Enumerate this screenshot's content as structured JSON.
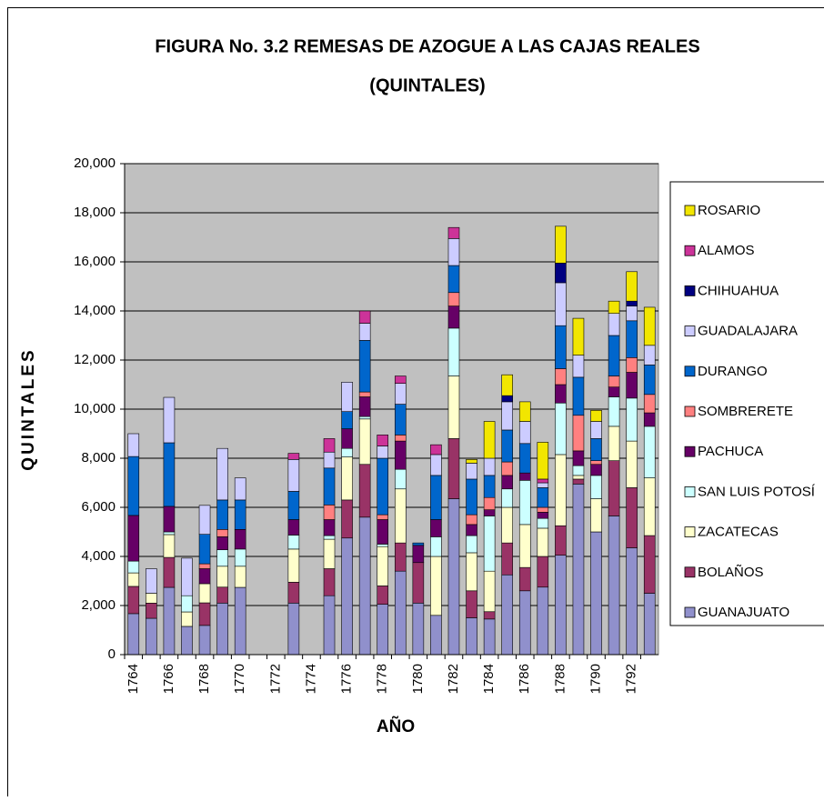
{
  "chart_data": {
    "type": "stacked-bar",
    "title": "FIGURA No. 3.2 REMESAS DE AZOGUE A LAS CAJAS REALES",
    "subtitle": "(QUINTALES)",
    "x_label": "AÑO",
    "y_label": "QUINTALES",
    "categories": [
      "1764",
      null,
      "1766",
      null,
      "1768",
      null,
      "1770",
      null,
      "1772",
      null,
      "1774",
      null,
      "1776",
      null,
      "1778",
      null,
      "1780",
      null,
      "1782",
      null,
      "1784",
      null,
      "1786",
      null,
      "1788",
      null,
      "1790",
      null,
      "1792",
      null
    ],
    "series": [
      {
        "name": "GUANAJUATO",
        "color": "#9090cc",
        "values": [
          1670,
          1480,
          2740,
          1150,
          1190,
          2100,
          2740,
          0,
          0,
          2100,
          0,
          2400,
          4750,
          5600,
          2050,
          3400,
          2100,
          1600,
          6350,
          1500,
          1450,
          3250,
          2600,
          2750,
          4050,
          6950,
          5000,
          5650,
          4350,
          2500
        ]
      },
      {
        "name": "BOLAÑOS",
        "color": "#993366",
        "values": [
          1110,
          620,
          1220,
          0,
          920,
          650,
          0,
          0,
          0,
          850,
          0,
          1100,
          1550,
          2150,
          750,
          1150,
          1650,
          0,
          2450,
          1100,
          300,
          1300,
          950,
          1250,
          1200,
          200,
          0,
          2250,
          2450,
          2350
        ]
      },
      {
        "name": "ZACATECAS",
        "color": "#ffffcc",
        "values": [
          550,
          400,
          930,
          590,
          780,
          850,
          860,
          0,
          0,
          1350,
          0,
          1200,
          1750,
          1850,
          1600,
          2200,
          0,
          2400,
          2550,
          1550,
          1650,
          1450,
          1750,
          1150,
          2900,
          150,
          1350,
          1400,
          1900,
          2350
        ]
      },
      {
        "name": "SAN LUIS POTOSÍ",
        "color": "#ccffff",
        "values": [
          480,
          0,
          110,
          660,
          0,
          670,
          700,
          0,
          0,
          570,
          0,
          150,
          350,
          100,
          100,
          800,
          0,
          800,
          1950,
          700,
          2250,
          750,
          1800,
          400,
          2100,
          400,
          950,
          1200,
          1750,
          2100
        ]
      },
      {
        "name": "PACHUCA",
        "color": "#660066",
        "values": [
          1860,
          0,
          1040,
          0,
          610,
          530,
          800,
          0,
          0,
          630,
          0,
          650,
          800,
          800,
          1000,
          1150,
          700,
          700,
          900,
          450,
          250,
          550,
          300,
          250,
          750,
          600,
          450,
          400,
          1050,
          550
        ]
      },
      {
        "name": "SOMBRERETE",
        "color": "#ff8080",
        "values": [
          0,
          0,
          0,
          0,
          200,
          300,
          0,
          0,
          0,
          0,
          0,
          600,
          0,
          200,
          200,
          250,
          0,
          0,
          550,
          400,
          500,
          550,
          0,
          200,
          650,
          1450,
          150,
          450,
          600,
          750
        ]
      },
      {
        "name": "DURANGO",
        "color": "#0066cc",
        "values": [
          2400,
          0,
          2590,
          0,
          1200,
          1200,
          1200,
          0,
          0,
          1150,
          0,
          1500,
          700,
          2100,
          2300,
          1250,
          100,
          1800,
          1100,
          1450,
          900,
          1300,
          1200,
          800,
          1750,
          1550,
          900,
          1650,
          1500,
          1200
        ]
      },
      {
        "name": "GUADALAJARA",
        "color": "#ccccff",
        "values": [
          930,
          1000,
          1850,
          1530,
          1180,
          2100,
          900,
          0,
          0,
          1300,
          0,
          650,
          1200,
          700,
          500,
          850,
          0,
          850,
          1100,
          650,
          700,
          1150,
          900,
          200,
          1750,
          900,
          700,
          900,
          600,
          800
        ]
      },
      {
        "name": "CHIHUAHUA",
        "color": "#000080",
        "values": [
          0,
          0,
          0,
          0,
          0,
          0,
          0,
          0,
          0,
          0,
          0,
          0,
          0,
          0,
          0,
          0,
          0,
          0,
          0,
          0,
          0,
          250,
          0,
          0,
          800,
          0,
          0,
          0,
          200,
          0
        ]
      },
      {
        "name": "ALAMOS",
        "color": "#cc3399",
        "values": [
          0,
          0,
          0,
          0,
          0,
          0,
          0,
          0,
          0,
          250,
          0,
          550,
          0,
          500,
          450,
          300,
          0,
          400,
          450,
          0,
          0,
          0,
          0,
          150,
          0,
          0,
          0,
          0,
          0,
          0
        ]
      },
      {
        "name": "ROSARIO",
        "color": "#f2e600",
        "values": [
          0,
          0,
          0,
          0,
          0,
          0,
          0,
          0,
          0,
          0,
          0,
          0,
          0,
          0,
          0,
          0,
          0,
          0,
          0,
          150,
          1500,
          850,
          800,
          1500,
          1500,
          1500,
          450,
          500,
          1200,
          1550
        ]
      }
    ],
    "ylim": [
      0,
      20000
    ],
    "yticks": [
      0,
      {
        "value": 2000,
        "label": "2,000"
      },
      {
        "value": 4000,
        "label": "4,000"
      },
      {
        "value": 6000,
        "label": "6,000"
      },
      {
        "value": 8000,
        "label": "8,000"
      },
      {
        "value": 10000,
        "label": "10,000"
      },
      {
        "value": 12000,
        "label": "12,000"
      },
      {
        "value": 14000,
        "label": "14,000"
      },
      {
        "value": 16000,
        "label": "16,000"
      },
      {
        "value": 18000,
        "label": "18,000"
      },
      {
        "value": 20000,
        "label": "20,000"
      }
    ],
    "grid": true,
    "legend": "right",
    "plot_color": "#c0c0c0"
  }
}
